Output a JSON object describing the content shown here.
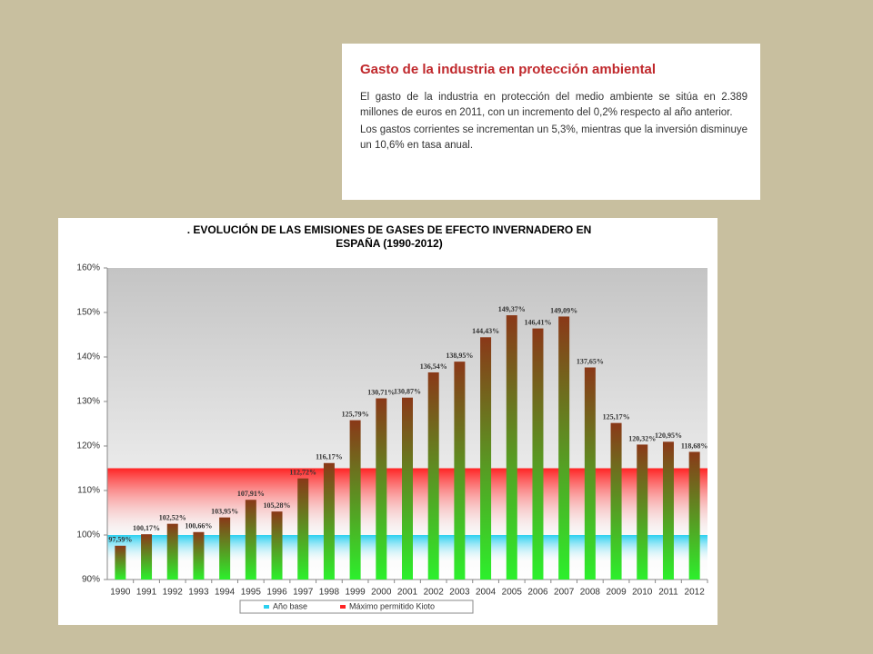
{
  "info_box": {
    "title": "Gasto de la industria en protección ambiental",
    "paragraphs": [
      "El gasto de la industria en protección del medio ambiente se sitúa en 2.389 millones de euros en 2011, con un incremento del 0,2% respecto al año anterior.",
      "Los gastos corrientes se incrementan un 5,3%, mientras que la inversión disminuye un 10,6% en tasa anual."
    ]
  },
  "chart_data": {
    "type": "bar",
    "title": [
      ". EVOLUCIÓN DE LAS EMISIONES DE GASES DE EFECTO INVERNADERO EN",
      "ESPAÑA (1990-2012)"
    ],
    "categories": [
      "1990",
      "1991",
      "1992",
      "1993",
      "1994",
      "1995",
      "1996",
      "1997",
      "1998",
      "1999",
      "2000",
      "2001",
      "2002",
      "2003",
      "2004",
      "2005",
      "2006",
      "2007",
      "2008",
      "2009",
      "2010",
      "2011",
      "2012"
    ],
    "values": [
      97.59,
      100.17,
      102.52,
      100.66,
      103.95,
      107.91,
      105.28,
      112.72,
      116.17,
      125.79,
      130.71,
      130.87,
      136.54,
      138.95,
      144.43,
      149.37,
      146.41,
      149.09,
      137.65,
      125.17,
      120.32,
      120.95,
      118.68
    ],
    "value_labels": [
      "97,59%",
      "100,17%",
      "102,52%",
      "100,66%",
      "103,95%",
      "107,91%",
      "105,28%",
      "112,72%",
      "116,17%",
      "125,79%",
      "130,71%",
      "130,87%",
      "136,54%",
      "138,95%",
      "144,43%",
      "149,37%",
      "146,41%",
      "149,09%",
      "137,65%",
      "125,17%",
      "120,32%",
      "120,95%",
      "118,68%"
    ],
    "color_top": "#8a3818",
    "color_bottom": "#2cf02c",
    "bands": [
      {
        "name": "Año base",
        "color": "#2ad0f0",
        "from": 94,
        "to": 100
      },
      {
        "name": "Máximo permitido Kioto",
        "color": "#ff2424",
        "from": 100,
        "to": 115
      }
    ],
    "ylim": [
      90,
      160
    ],
    "yticks": [
      {
        "value": 90,
        "label": "90%"
      },
      {
        "value": 100,
        "label": "100%"
      },
      {
        "value": 110,
        "label": "110%"
      },
      {
        "value": 120,
        "label": "120%"
      },
      {
        "value": 130,
        "label": "130%"
      },
      {
        "value": 140,
        "label": "140%"
      },
      {
        "value": 150,
        "label": "150%"
      },
      {
        "value": 160,
        "label": "160%"
      }
    ],
    "grid": false,
    "legend": "bottom"
  }
}
